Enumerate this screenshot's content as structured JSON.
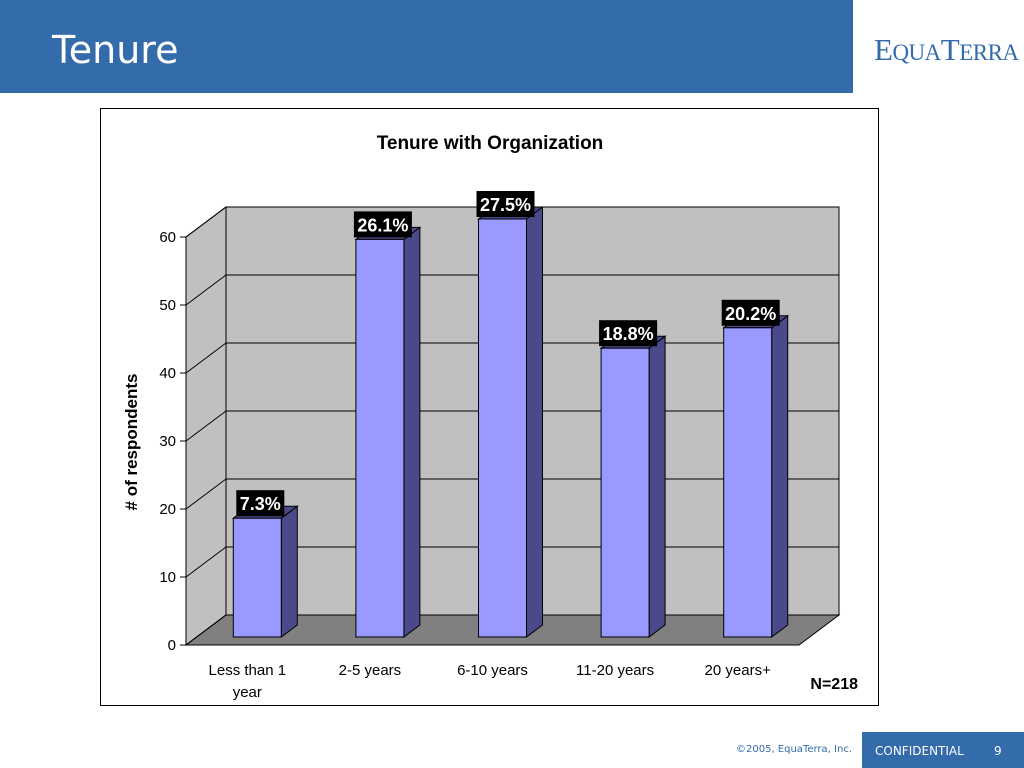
{
  "slide": {
    "title": "Tenure",
    "logo_text": "EquaTerra",
    "copyright": "©2005, EquaTerra, Inc.",
    "confidential": "CONFIDENTIAL",
    "page_number": "9"
  },
  "colors": {
    "header": "#336bab",
    "bar_front": "#9999ff",
    "bar_side": "#4a4a8a",
    "plot_back": "#c0c0c0",
    "plot_floor": "#808080",
    "label_bg": "#000000"
  },
  "chart_data": {
    "type": "bar",
    "title": "Tenure with Organization",
    "xlabel": "",
    "ylabel": "# of respondents",
    "ylim": [
      0,
      60
    ],
    "yticks": [
      0,
      10,
      20,
      30,
      40,
      50,
      60
    ],
    "grid": true,
    "three_d": true,
    "categories": [
      "Less than 1 year",
      "2-5 years",
      "6-10 years",
      "11-20 years",
      "20 years+"
    ],
    "category_lines": [
      [
        "Less than 1",
        "year"
      ],
      [
        "2-5 years"
      ],
      [
        "6-10 years"
      ],
      [
        "11-20 years"
      ],
      [
        "20 years+"
      ]
    ],
    "values": [
      16,
      57,
      60,
      41,
      44
    ],
    "data_labels": [
      "7.3%",
      "26.1%",
      "27.5%",
      "18.8%",
      "20.2%"
    ],
    "annotation": "N=218"
  }
}
